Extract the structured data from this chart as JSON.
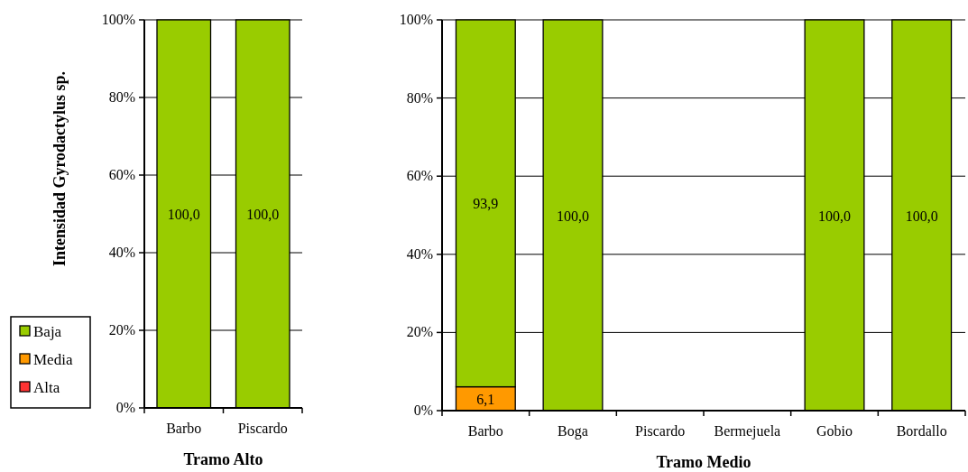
{
  "chart_data": [
    {
      "type": "bar",
      "stacked": true,
      "ylabel": "Intensidad Gyrodactylus sp.",
      "xlabel": "Tramo Alto",
      "categories": [
        "Barbo",
        "Piscardo"
      ],
      "series": [
        {
          "name": "Alta",
          "color": "#ff3333",
          "values": [
            0,
            0
          ]
        },
        {
          "name": "Media",
          "color": "#ff9900",
          "values": [
            0,
            0
          ]
        },
        {
          "name": "Baja",
          "color": "#99cc00",
          "values": [
            100,
            100
          ],
          "value_labels": [
            "100,0",
            "100,0"
          ]
        }
      ],
      "ylim": [
        0,
        100
      ],
      "yticks": [
        {
          "value": 0,
          "label": "0%"
        },
        {
          "value": 20,
          "label": "20%"
        },
        {
          "value": 40,
          "label": "40%"
        },
        {
          "value": 60,
          "label": "60%"
        },
        {
          "value": 80,
          "label": "80%"
        },
        {
          "value": 100,
          "label": "100%"
        }
      ],
      "grid": "y",
      "legend": "left"
    },
    {
      "type": "bar",
      "stacked": true,
      "xlabel": "Tramo Medio",
      "categories": [
        "Barbo",
        "Boga",
        "Piscardo",
        "Bermejuela",
        "Gobio",
        "Bordallo"
      ],
      "series": [
        {
          "color": "#ff3333",
          "values": [
            0,
            0,
            null,
            null,
            0,
            0
          ]
        },
        {
          "color": "#ff9900",
          "values": [
            6.1,
            0,
            null,
            null,
            0,
            0
          ],
          "value_labels": [
            "6,1",
            null,
            null,
            null,
            null,
            null
          ]
        },
        {
          "color": "#99cc00",
          "values": [
            93.9,
            100,
            null,
            null,
            100,
            100
          ],
          "value_labels": [
            "93,9",
            "100,0",
            null,
            null,
            "100,0",
            "100,0"
          ]
        }
      ],
      "ylim": [
        0,
        100
      ],
      "yticks": [
        {
          "value": 0,
          "label": "0%"
        },
        {
          "value": 20,
          "label": "20%"
        },
        {
          "value": 40,
          "label": "40%"
        },
        {
          "value": 60,
          "label": "60%"
        },
        {
          "value": 80,
          "label": "80%"
        },
        {
          "value": 100,
          "label": "100%"
        }
      ],
      "grid": "y"
    }
  ]
}
